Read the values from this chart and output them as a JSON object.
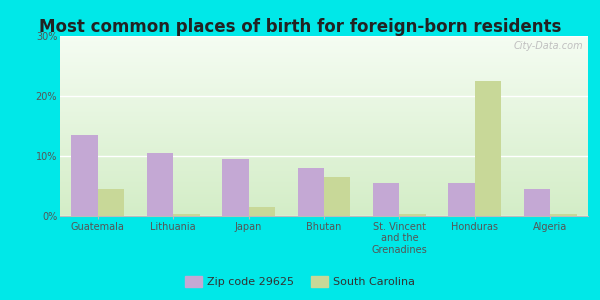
{
  "title": "Most common places of birth for foreign-born residents",
  "categories": [
    "Guatemala",
    "Lithuania",
    "Japan",
    "Bhutan",
    "St. Vincent\nand the\nGrenadines",
    "Honduras",
    "Algeria"
  ],
  "zip_values": [
    13.5,
    10.5,
    9.5,
    8.0,
    5.5,
    5.5,
    4.5
  ],
  "sc_values": [
    4.5,
    0.3,
    1.5,
    6.5,
    0.3,
    22.5,
    0.3
  ],
  "zip_color": "#c4a8d4",
  "sc_color": "#c8d898",
  "background_outer": "#00e8e8",
  "background_inner_top": "#f5f5f5",
  "background_inner_bottom": "#d8eccc",
  "ylim": [
    0,
    30
  ],
  "yticks": [
    0,
    10,
    20,
    30
  ],
  "ytick_labels": [
    "0%",
    "10%",
    "20%",
    "30%"
  ],
  "bar_width": 0.35,
  "legend_zip": "Zip code 29625",
  "legend_sc": "South Carolina",
  "watermark": "City-Data.com",
  "title_fontsize": 12,
  "tick_fontsize": 7,
  "legend_fontsize": 8
}
